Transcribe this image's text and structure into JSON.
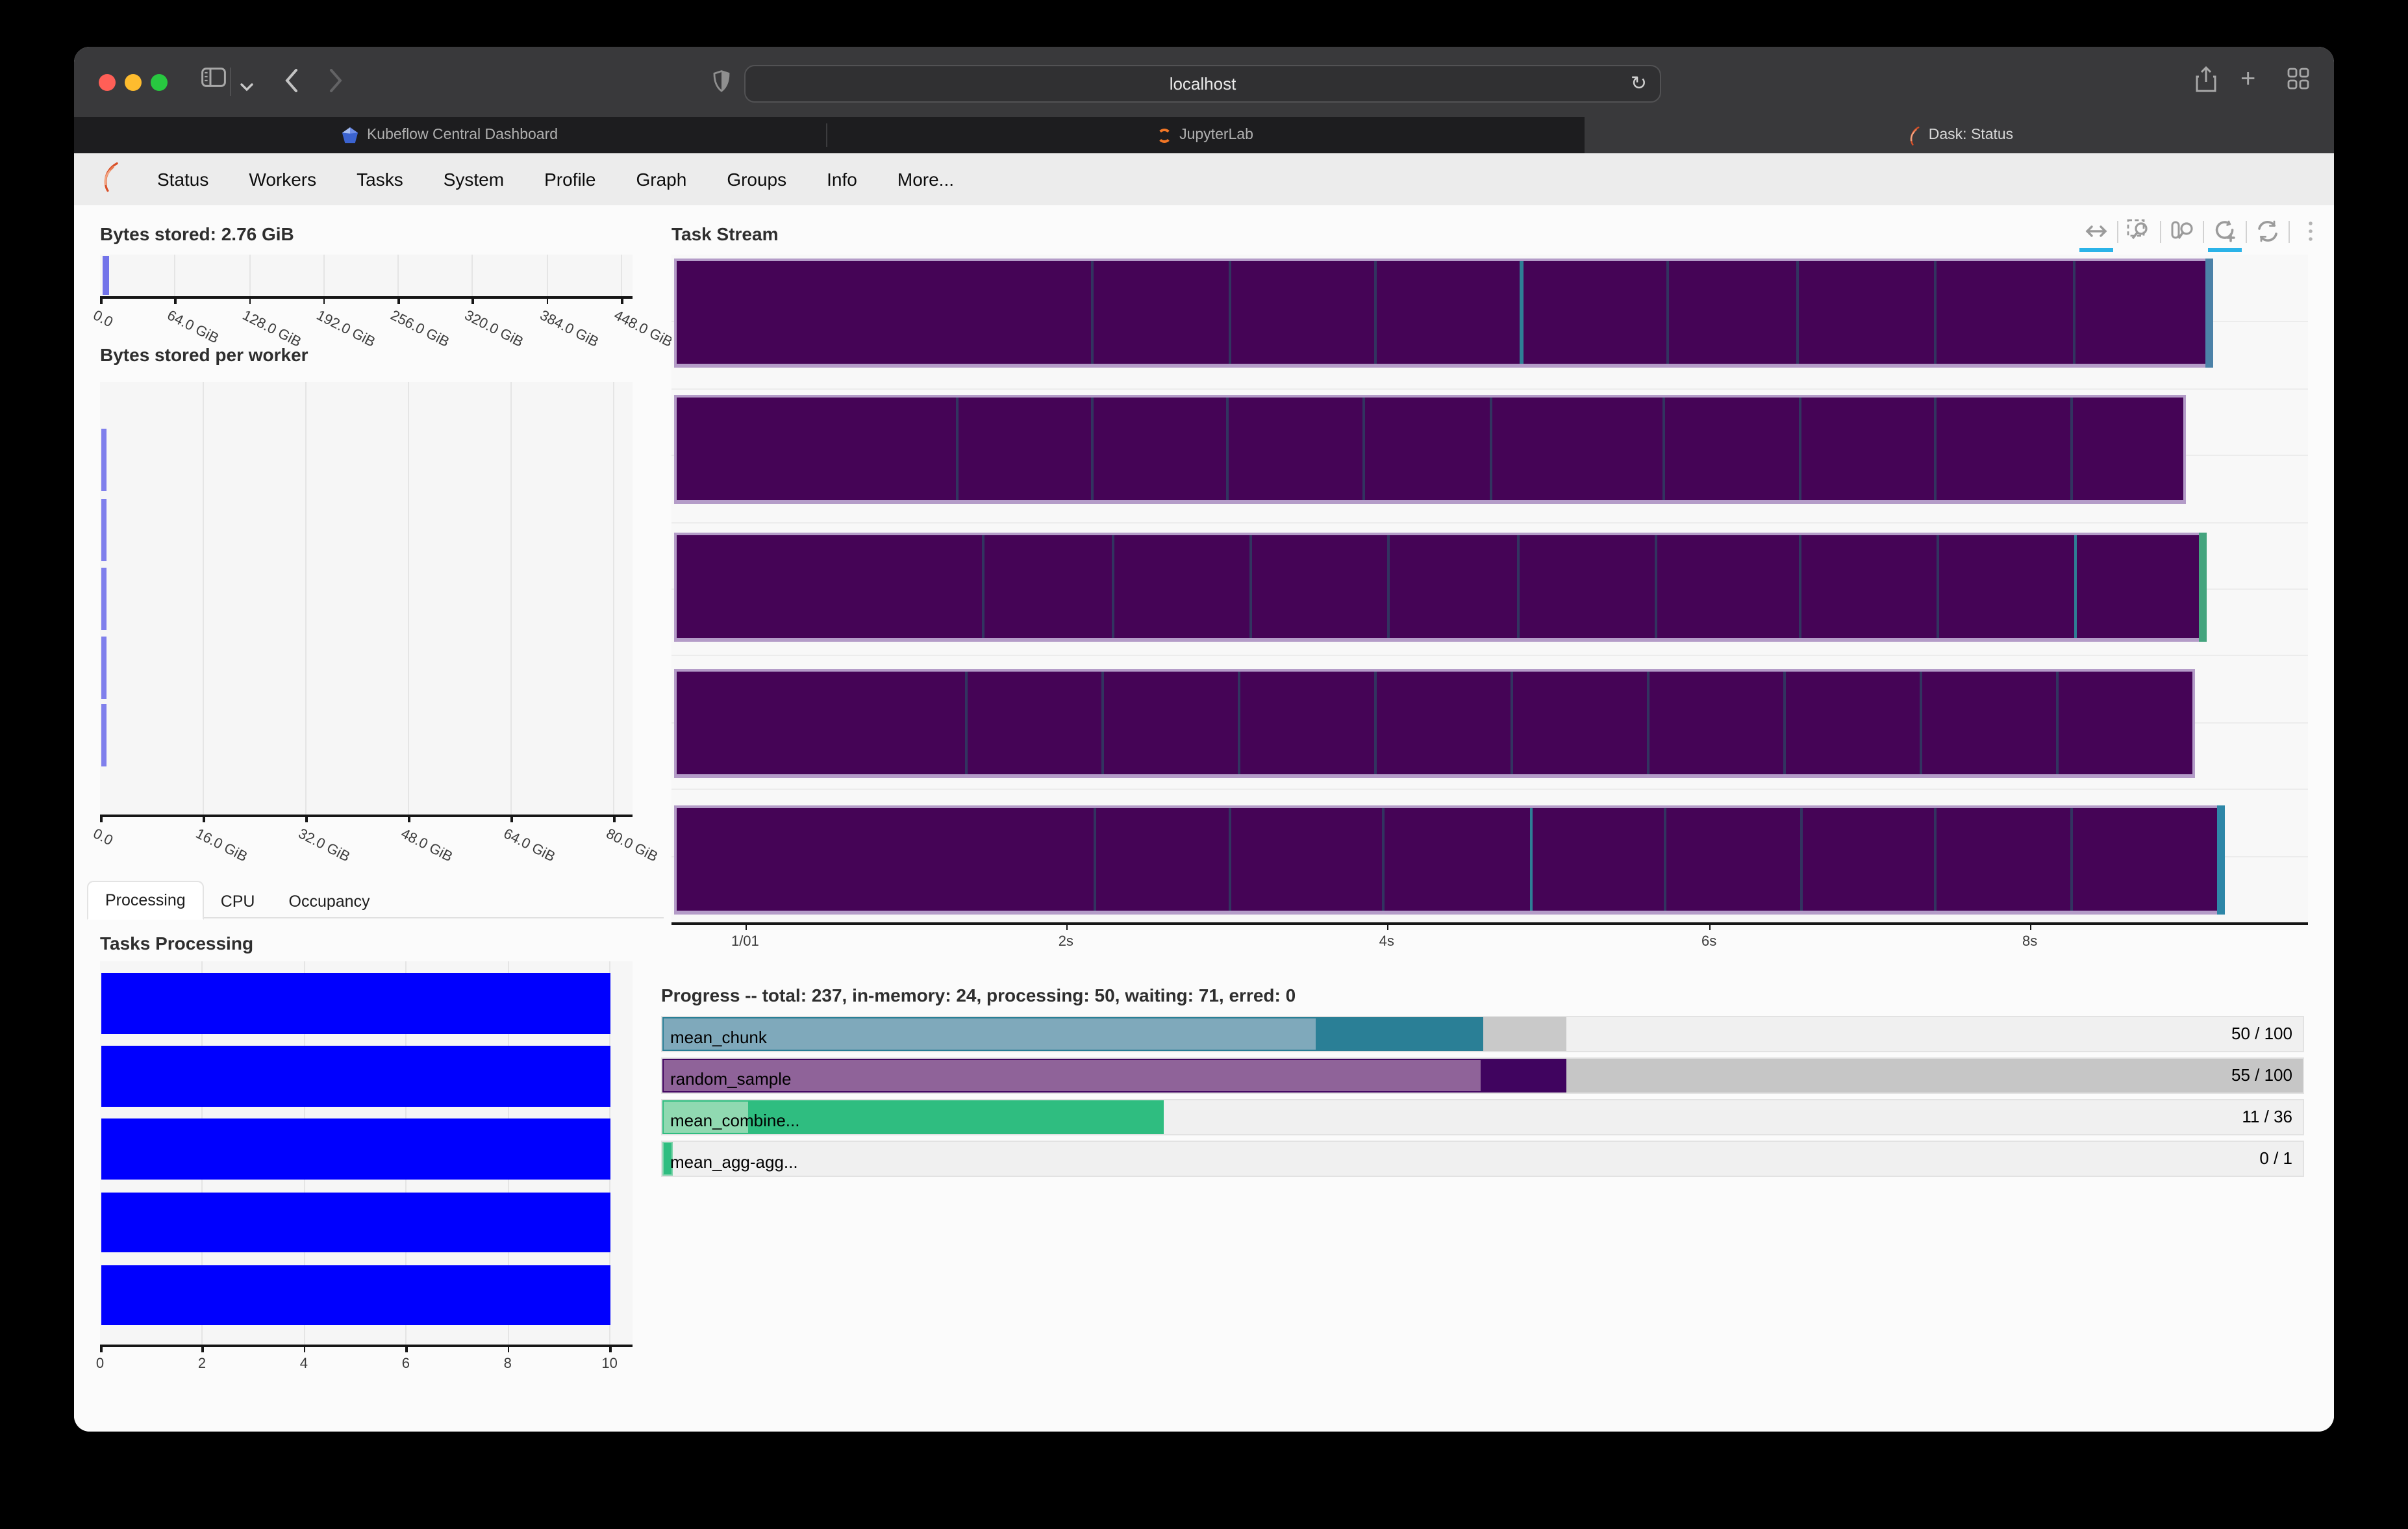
{
  "browser": {
    "url": "localhost",
    "traffic_colors": [
      "#ff5f57",
      "#febc2e",
      "#28c840"
    ],
    "toolbar_icons": [
      "sidebar-icon",
      "chevron-down-icon",
      "back-icon",
      "forward-icon",
      "shield-icon",
      "reload-icon",
      "share-icon",
      "new-tab-icon",
      "tab-overview-icon"
    ],
    "tabs": [
      {
        "label": "Kubeflow Central Dashboard",
        "favicon": "kubeflow-icon",
        "active": false
      },
      {
        "label": "JupyterLab",
        "favicon": "jupyter-icon",
        "active": false
      },
      {
        "label": "Dask: Status",
        "favicon": "dask-icon",
        "active": true
      }
    ]
  },
  "nav": {
    "items": [
      "Status",
      "Workers",
      "Tasks",
      "System",
      "Profile",
      "Graph",
      "Groups",
      "Info",
      "More..."
    ]
  },
  "colors": {
    "task_purple": "#450456",
    "task_lavender": "#b49cc8",
    "task_sep": "#323460",
    "cap_blue": "#4c82a8",
    "cap_green": "#44a47e",
    "cap_teal": "#2e87a8",
    "bar_blue": "#0000fe",
    "stored_blue": "#7273e9",
    "active_underline": "#2bb3e8"
  },
  "charts": {
    "bytes_stored": {
      "title": "Bytes stored: 2.76 GiB",
      "ticks": [
        {
          "label": "0.0",
          "f": 0
        },
        {
          "label": "64.0 GiB",
          "f": 0.1397
        },
        {
          "label": "128.0 GiB",
          "f": 0.2795
        },
        {
          "label": "192.0 GiB",
          "f": 0.4192
        },
        {
          "label": "256.0 GiB",
          "f": 0.559
        },
        {
          "label": "320.0 GiB",
          "f": 0.6987
        },
        {
          "label": "384.0 GiB",
          "f": 0.8384
        },
        {
          "label": "448.0 GiB",
          "f": 0.9782
        }
      ]
    },
    "bytes_per_worker": {
      "title": "Bytes stored per worker",
      "ticks": [
        {
          "label": "0.0",
          "f": 0
        },
        {
          "label": "16.0 GiB",
          "f": 0.1928
        },
        {
          "label": "32.0 GiB",
          "f": 0.3855
        },
        {
          "label": "48.0 GiB",
          "f": 0.5783
        },
        {
          "label": "64.0 GiB",
          "f": 0.7711
        },
        {
          "label": "80.0 GiB",
          "f": 0.9639
        }
      ],
      "bands": [
        [
          36,
          84
        ],
        [
          90,
          138
        ],
        [
          143,
          191
        ],
        [
          196,
          244
        ],
        [
          248,
          296
        ]
      ]
    },
    "processing_tabs": {
      "items": [
        "Processing",
        "CPU",
        "Occupancy"
      ],
      "active": 0
    },
    "tasks_processing": {
      "title": "Tasks Processing",
      "ticks": [
        {
          "label": "0",
          "f": 0
        },
        {
          "label": "2",
          "f": 0.1914
        },
        {
          "label": "4",
          "f": 0.3828
        },
        {
          "label": "6",
          "f": 0.5742
        },
        {
          "label": "8",
          "f": 0.7656
        },
        {
          "label": "10",
          "f": 0.9569
        }
      ],
      "bar_end_f": 0.9569
    },
    "task_stream": {
      "title": "Task Stream",
      "ticks": [
        {
          "label": "1/01",
          "f": 0.045
        },
        {
          "label": "2s",
          "f": 0.241
        },
        {
          "label": "4s",
          "f": 0.437
        },
        {
          "label": "6s",
          "f": 0.634
        },
        {
          "label": "8s",
          "f": 0.83
        }
      ],
      "rows": [
        {
          "end_f": 0.942,
          "cap": "#4c82a8",
          "seps": [
            {
              "f": 0.27
            },
            {
              "f": 0.36
            },
            {
              "f": 0.455
            },
            {
              "f": 0.55,
              "teal": true
            },
            {
              "f": 0.645
            },
            {
              "f": 0.73
            },
            {
              "f": 0.82
            },
            {
              "f": 0.91
            }
          ]
        },
        {
          "end_f": 0.925,
          "cap": "",
          "seps": [
            {
              "f": 0.185
            },
            {
              "f": 0.275
            },
            {
              "f": 0.365
            },
            {
              "f": 0.455
            },
            {
              "f": 0.54
            },
            {
              "f": 0.655
            },
            {
              "f": 0.745
            },
            {
              "f": 0.835
            },
            {
              "f": 0.925
            }
          ]
        },
        {
          "end_f": 0.938,
          "cap": "#44a47e",
          "seps": [
            {
              "f": 0.2
            },
            {
              "f": 0.285
            },
            {
              "f": 0.375
            },
            {
              "f": 0.465
            },
            {
              "f": 0.55
            },
            {
              "f": 0.64
            },
            {
              "f": 0.735
            },
            {
              "f": 0.825
            },
            {
              "f": 0.915,
              "teal": true
            }
          ]
        },
        {
          "end_f": 0.931,
          "cap": "",
          "seps": [
            {
              "f": 0.19
            },
            {
              "f": 0.28
            },
            {
              "f": 0.37
            },
            {
              "f": 0.46
            },
            {
              "f": 0.55
            },
            {
              "f": 0.64
            },
            {
              "f": 0.73
            },
            {
              "f": 0.82
            },
            {
              "f": 0.91
            }
          ]
        },
        {
          "end_f": 0.949,
          "cap": "#2e87a8",
          "seps": [
            {
              "f": 0.27
            },
            {
              "f": 0.357
            },
            {
              "f": 0.456
            },
            {
              "f": 0.552,
              "teal": true
            },
            {
              "f": 0.639
            },
            {
              "f": 0.727
            },
            {
              "f": 0.814
            },
            {
              "f": 0.902
            }
          ]
        }
      ]
    },
    "progress": {
      "title": "Progress -- total: 237, in-memory: 24, processing: 50, waiting: 71, erred: 0",
      "rows": [
        {
          "label": "mean_chunk",
          "count": "50 / 100",
          "border": "#2A7F96",
          "border_to": 0.5,
          "segments": [
            {
              "f": 0.398,
              "color": "#7FA9BB"
            },
            {
              "f": 0.102,
              "color": "#2A7F96"
            },
            {
              "f": 0.051,
              "color": "#C9C9C9"
            }
          ]
        },
        {
          "label": "random_sample",
          "count": "55 / 100",
          "border": "#40045F",
          "border_to": 0.551,
          "segments": [
            {
              "f": 0.499,
              "color": "#8F6399"
            },
            {
              "f": 0.052,
              "color": "#40045F"
            },
            {
              "f": 0.449,
              "color": "#C6C6C6"
            }
          ]
        },
        {
          "label": "mean_combine...",
          "count": "11 / 36",
          "border": "#2FBD80",
          "border_to": 0.306,
          "segments": [
            {
              "f": 0.052,
              "color": "#90D9B1"
            },
            {
              "f": 0.254,
              "color": "#2FBD80"
            }
          ]
        },
        {
          "label": "mean_agg-agg...",
          "count": "0 / 1",
          "border": "#7fd3ab",
          "border_to": 0.006,
          "segments": [
            {
              "f": 0.006,
              "color": "#2FBD80"
            }
          ]
        }
      ]
    }
  },
  "chart_data": [
    {
      "type": "bar",
      "title": "Bytes stored: 2.76 GiB",
      "orientation": "horizontal",
      "values_gib": [
        2.76
      ],
      "x_ticks": [
        "0.0",
        "64.0 GiB",
        "128.0 GiB",
        "192.0 GiB",
        "256.0 GiB",
        "320.0 GiB",
        "384.0 GiB",
        "448.0 GiB"
      ],
      "xlim_gib": [
        0,
        458
      ],
      "grid": true
    },
    {
      "type": "bar",
      "title": "Bytes stored per worker",
      "orientation": "horizontal",
      "workers": 5,
      "values_gib": [
        0.55,
        0.55,
        0.55,
        0.56,
        0.55
      ],
      "x_ticks": [
        "0.0",
        "16.0 GiB",
        "32.0 GiB",
        "48.0 GiB",
        "64.0 GiB",
        "80.0 GiB"
      ],
      "xlim_gib": [
        0,
        83
      ],
      "grid": true
    },
    {
      "type": "bar",
      "title": "Tasks Processing",
      "orientation": "horizontal",
      "workers": 5,
      "values": [
        10,
        10,
        10,
        10,
        10
      ],
      "x_ticks": [
        "0",
        "2",
        "4",
        "6",
        "8",
        "10"
      ],
      "xlim": [
        0,
        10.45
      ],
      "grid": true,
      "bar_color": "#0000fe"
    },
    {
      "type": "area",
      "title": "Task Stream",
      "x_ticks": [
        "1/01",
        "2s",
        "4s",
        "6s",
        "8s"
      ],
      "workers": 5,
      "rows_end_seconds": [
        9.13,
        8.95,
        9.08,
        9.0,
        9.2
      ],
      "task_color": "#450456",
      "grid": true
    },
    {
      "type": "table",
      "title": "Progress -- total: 237, in-memory: 24, processing: 50, waiting: 71, erred: 0",
      "rows": [
        [
          "mean_chunk",
          "50 / 100"
        ],
        [
          "random_sample",
          "55 / 100"
        ],
        [
          "mean_combine...",
          "11 / 36"
        ],
        [
          "mean_agg-agg...",
          "0 / 1"
        ]
      ]
    }
  ]
}
